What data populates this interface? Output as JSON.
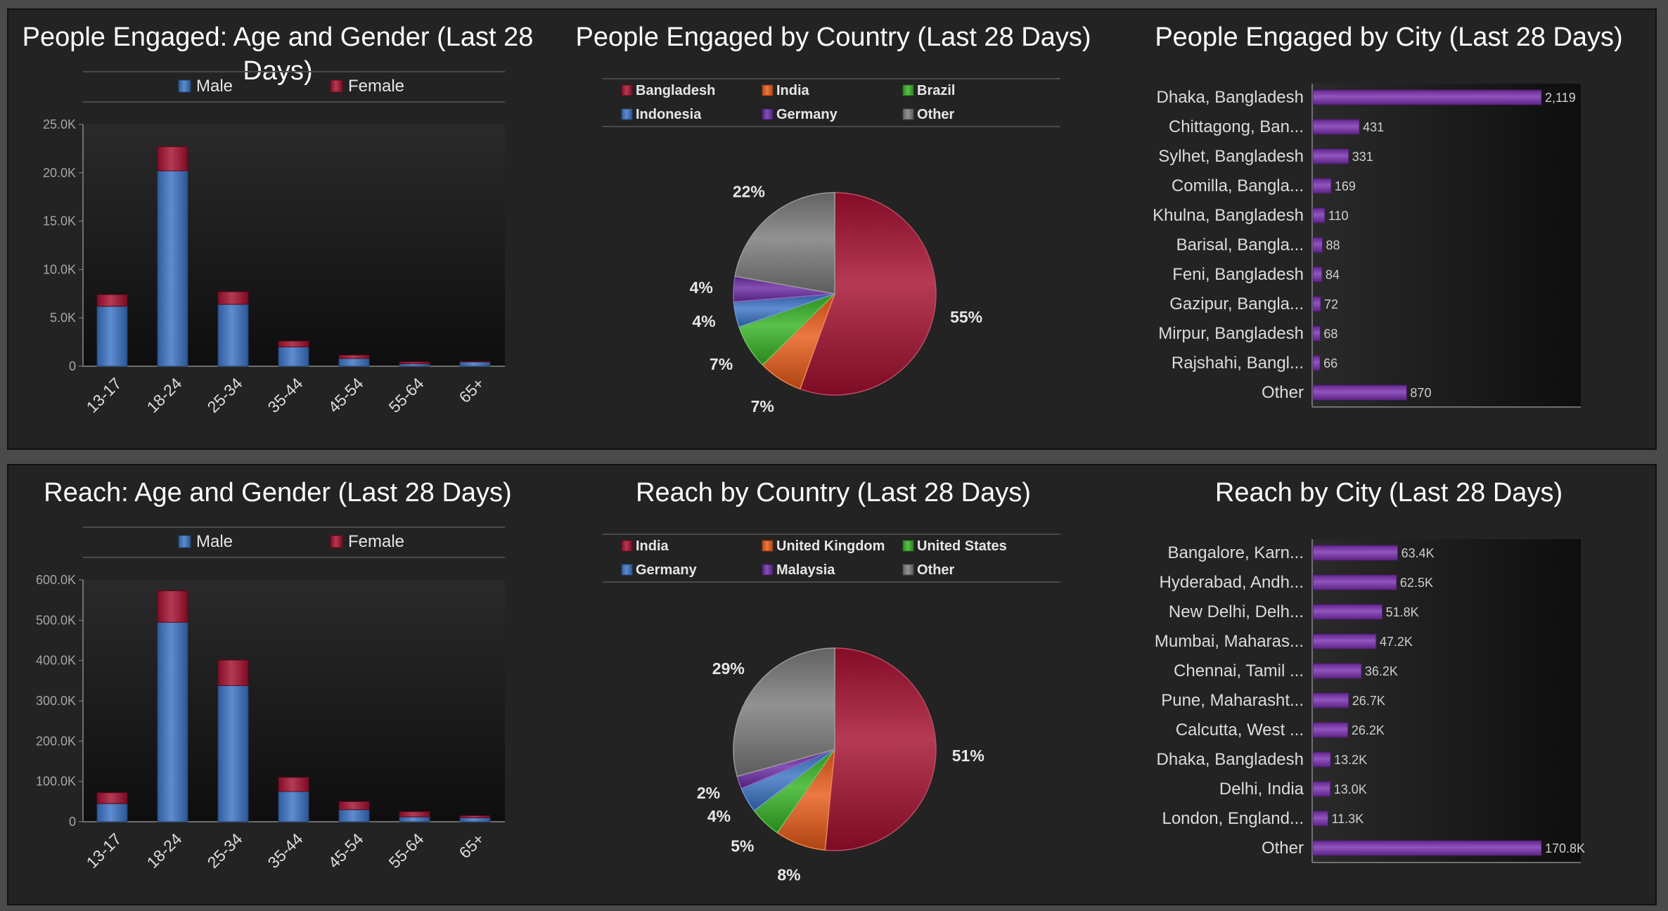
{
  "panels": [
    {
      "charts": [
        {
          "type": "bar",
          "stacked": true,
          "title": "People Engaged: Age and Gender (Last 28 Days)",
          "categories": [
            "13-17",
            "18-24",
            "25-34",
            "35-44",
            "45-54",
            "55-64",
            "65+"
          ],
          "series": [
            {
              "name": "Male",
              "color": "#3b73c4",
              "values": [
                6200,
                20200,
                6400,
                2000,
                800,
                250,
                450
              ]
            },
            {
              "name": "Female",
              "color": "#a50f2f",
              "values": [
                1200,
                2500,
                1300,
                600,
                350,
                200,
                50
              ]
            }
          ],
          "yticks": [
            "0",
            "5.0K",
            "10.0K",
            "15.0K",
            "20.0K",
            "25.0K"
          ],
          "ylim": [
            0,
            25000
          ],
          "legend": "top"
        },
        {
          "type": "pie",
          "title": "People Engaged by Country (Last 28 Days)",
          "slices": [
            {
              "label": "Bangladesh",
              "value": 55,
              "pct": "55%",
              "color": "#a50f2f"
            },
            {
              "label": "India",
              "value": 7,
              "pct": "7%",
              "color": "#e85a18"
            },
            {
              "label": "Brazil",
              "value": 7,
              "pct": "7%",
              "color": "#35b224"
            },
            {
              "label": "Indonesia",
              "value": 4,
              "pct": "4%",
              "color": "#3b73c4"
            },
            {
              "label": "Germany",
              "value": 4,
              "pct": "4%",
              "color": "#6a2aa3"
            },
            {
              "label": "Other",
              "value": 22,
              "pct": "22%",
              "color": "#7a7a7a"
            }
          ],
          "legend": "top"
        },
        {
          "type": "bar",
          "orientation": "horizontal",
          "title": "People Engaged by City (Last 28 Days)",
          "categories": [
            "Dhaka, Bangladesh",
            "Chittagong, Ban...",
            "Sylhet, Bangladesh",
            "Comilla, Bangla...",
            "Khulna, Bangladesh",
            "Barisal, Bangla...",
            "Feni, Bangladesh",
            "Gazipur, Bangla...",
            "Mirpur, Bangladesh",
            "Rajshahi, Bangl...",
            "Other"
          ],
          "values": [
            2119,
            431,
            331,
            169,
            110,
            88,
            84,
            72,
            68,
            66,
            870
          ],
          "value_labels": [
            "2,119",
            "431",
            "331",
            "169",
            "110",
            "88",
            "84",
            "72",
            "68",
            "66",
            "870"
          ],
          "max": 2119,
          "color": "#7a2fb0"
        }
      ]
    },
    {
      "charts": [
        {
          "type": "bar",
          "stacked": true,
          "title": "Reach: Age and Gender (Last 28 Days)",
          "categories": [
            "13-17",
            "18-24",
            "25-34",
            "35-44",
            "45-54",
            "55-64",
            "65+"
          ],
          "series": [
            {
              "name": "Male",
              "color": "#3b73c4",
              "values": [
                45000,
                495000,
                338000,
                75000,
                30000,
                12000,
                10000
              ]
            },
            {
              "name": "Female",
              "color": "#a50f2f",
              "values": [
                27000,
                78000,
                63000,
                35000,
                20000,
                13000,
                5000
              ]
            }
          ],
          "yticks": [
            "0",
            "100.0K",
            "200.0K",
            "300.0K",
            "400.0K",
            "500.0K",
            "600.0K"
          ],
          "ylim": [
            0,
            600000
          ],
          "legend": "top"
        },
        {
          "type": "pie",
          "title": "Reach by Country (Last 28 Days)",
          "slices": [
            {
              "label": "India",
              "value": 51,
              "pct": "51%",
              "color": "#a50f2f"
            },
            {
              "label": "United Kingdom",
              "value": 8,
              "pct": "8%",
              "color": "#e85a18"
            },
            {
              "label": "United States",
              "value": 5,
              "pct": "5%",
              "color": "#35b224"
            },
            {
              "label": "Germany",
              "value": 4,
              "pct": "4%",
              "color": "#3b73c4"
            },
            {
              "label": "Malaysia",
              "value": 2,
              "pct": "2%",
              "color": "#6a2aa3"
            },
            {
              "label": "Other",
              "value": 29,
              "pct": "29%",
              "color": "#7a7a7a"
            }
          ],
          "legend": "top"
        },
        {
          "type": "bar",
          "orientation": "horizontal",
          "title": "Reach by City (Last 28 Days)",
          "categories": [
            "Bangalore, Karn...",
            "Hyderabad, Andh...",
            "New Delhi, Delh...",
            "Mumbai, Maharas...",
            "Chennai, Tamil ...",
            "Pune, Maharasht...",
            "Calcutta, West ...",
            "Dhaka, Bangladesh",
            "Delhi, India",
            "London, England...",
            "Other"
          ],
          "values": [
            63400,
            62500,
            51800,
            47200,
            36200,
            26700,
            26200,
            13200,
            13000,
            11300,
            170800
          ],
          "value_labels": [
            "63.4K",
            "62.5K",
            "51.8K",
            "47.2K",
            "36.2K",
            "26.7K",
            "26.2K",
            "13.2K",
            "13.0K",
            "11.3K",
            "170.8K"
          ],
          "max": 170800,
          "color": "#7a2fb0"
        }
      ]
    }
  ]
}
